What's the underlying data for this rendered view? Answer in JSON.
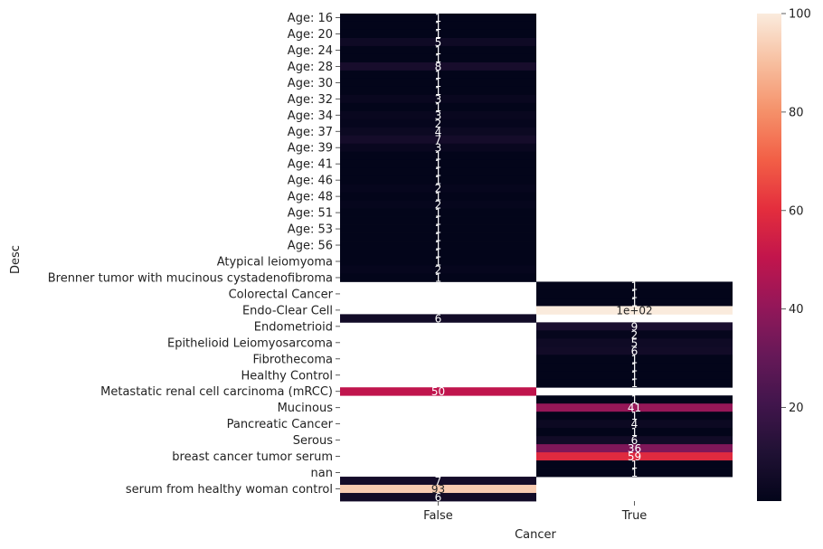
{
  "chart_data": {
    "type": "heatmap",
    "xlabel": "Cancer",
    "ylabel": "Desc",
    "x_categories": [
      "False",
      "True"
    ],
    "y_tick_labels": [
      "Age: 16",
      "Age: 20",
      "Age: 24",
      "Age: 28",
      "Age: 30",
      "Age: 32",
      "Age: 34",
      "Age: 37",
      "Age: 39",
      "Age: 41",
      "Age: 46",
      "Age: 48",
      "Age: 51",
      "Age: 53",
      "Age: 56",
      "Atypical leiomyoma",
      "Brenner tumor with mucinous cystadenofibroma",
      "Colorectal Cancer",
      "Endo-Clear Cell",
      "Endometrioid",
      "Epithelioid Leiomyosarcoma",
      "Fibrothecoma",
      "Healthy Control",
      "Metastatic renal cell carcinoma (mRCC)",
      "Mucinous",
      "Pancreatic Cancer",
      "Serous",
      "breast cancer tumor serum",
      "nan",
      "serum from healthy woman control"
    ],
    "rows": [
      {
        "false": 1,
        "true": null
      },
      {
        "false": 1,
        "true": null
      },
      {
        "false": 1,
        "true": null
      },
      {
        "false": 5,
        "true": null
      },
      {
        "false": 1,
        "true": null
      },
      {
        "false": 1,
        "true": null
      },
      {
        "false": 8,
        "true": null
      },
      {
        "false": 1,
        "true": null
      },
      {
        "false": 1,
        "true": null
      },
      {
        "false": 1,
        "true": null
      },
      {
        "false": 3,
        "true": null
      },
      {
        "false": 1,
        "true": null
      },
      {
        "false": 3,
        "true": null
      },
      {
        "false": 2,
        "true": null
      },
      {
        "false": 4,
        "true": null
      },
      {
        "false": 7,
        "true": null
      },
      {
        "false": 3,
        "true": null
      },
      {
        "false": 1,
        "true": null
      },
      {
        "false": 1,
        "true": null
      },
      {
        "false": 1,
        "true": null
      },
      {
        "false": 1,
        "true": null
      },
      {
        "false": 2,
        "true": null
      },
      {
        "false": 1,
        "true": null
      },
      {
        "false": 2,
        "true": null
      },
      {
        "false": 1,
        "true": null
      },
      {
        "false": 1,
        "true": null
      },
      {
        "false": 1,
        "true": null
      },
      {
        "false": 1,
        "true": null
      },
      {
        "false": 1,
        "true": null
      },
      {
        "false": 1,
        "true": null
      },
      {
        "false": 1,
        "true": null
      },
      {
        "false": 2,
        "true": null
      },
      {
        "false": 1,
        "true": null
      },
      {
        "false": null,
        "true": 1
      },
      {
        "false": null,
        "true": 1
      },
      {
        "false": null,
        "true": 1
      },
      {
        "false": null,
        "true": 100,
        "label": "1e+02"
      },
      {
        "false": 6,
        "true": null
      },
      {
        "false": null,
        "true": 9
      },
      {
        "false": null,
        "true": 2
      },
      {
        "false": null,
        "true": 5
      },
      {
        "false": null,
        "true": 6
      },
      {
        "false": null,
        "true": 1
      },
      {
        "false": null,
        "true": 1
      },
      {
        "false": null,
        "true": 1
      },
      {
        "false": null,
        "true": 1
      },
      {
        "false": 50,
        "true": null
      },
      {
        "false": null,
        "true": 1
      },
      {
        "false": null,
        "true": 41
      },
      {
        "false": null,
        "true": 1
      },
      {
        "false": null,
        "true": 4
      },
      {
        "false": null,
        "true": 1
      },
      {
        "false": null,
        "true": 6
      },
      {
        "false": null,
        "true": 36
      },
      {
        "false": null,
        "true": 59
      },
      {
        "false": null,
        "true": 1
      },
      {
        "false": null,
        "true": 1
      },
      {
        "false": 7,
        "true": null
      },
      {
        "false": 93,
        "true": null
      },
      {
        "false": 6,
        "true": null
      }
    ],
    "colorbar": {
      "min": 1,
      "max": 100,
      "ticks": [
        20,
        40,
        60,
        80,
        100
      ],
      "colormap": "rocket"
    },
    "missing_color": "#ffffff"
  }
}
